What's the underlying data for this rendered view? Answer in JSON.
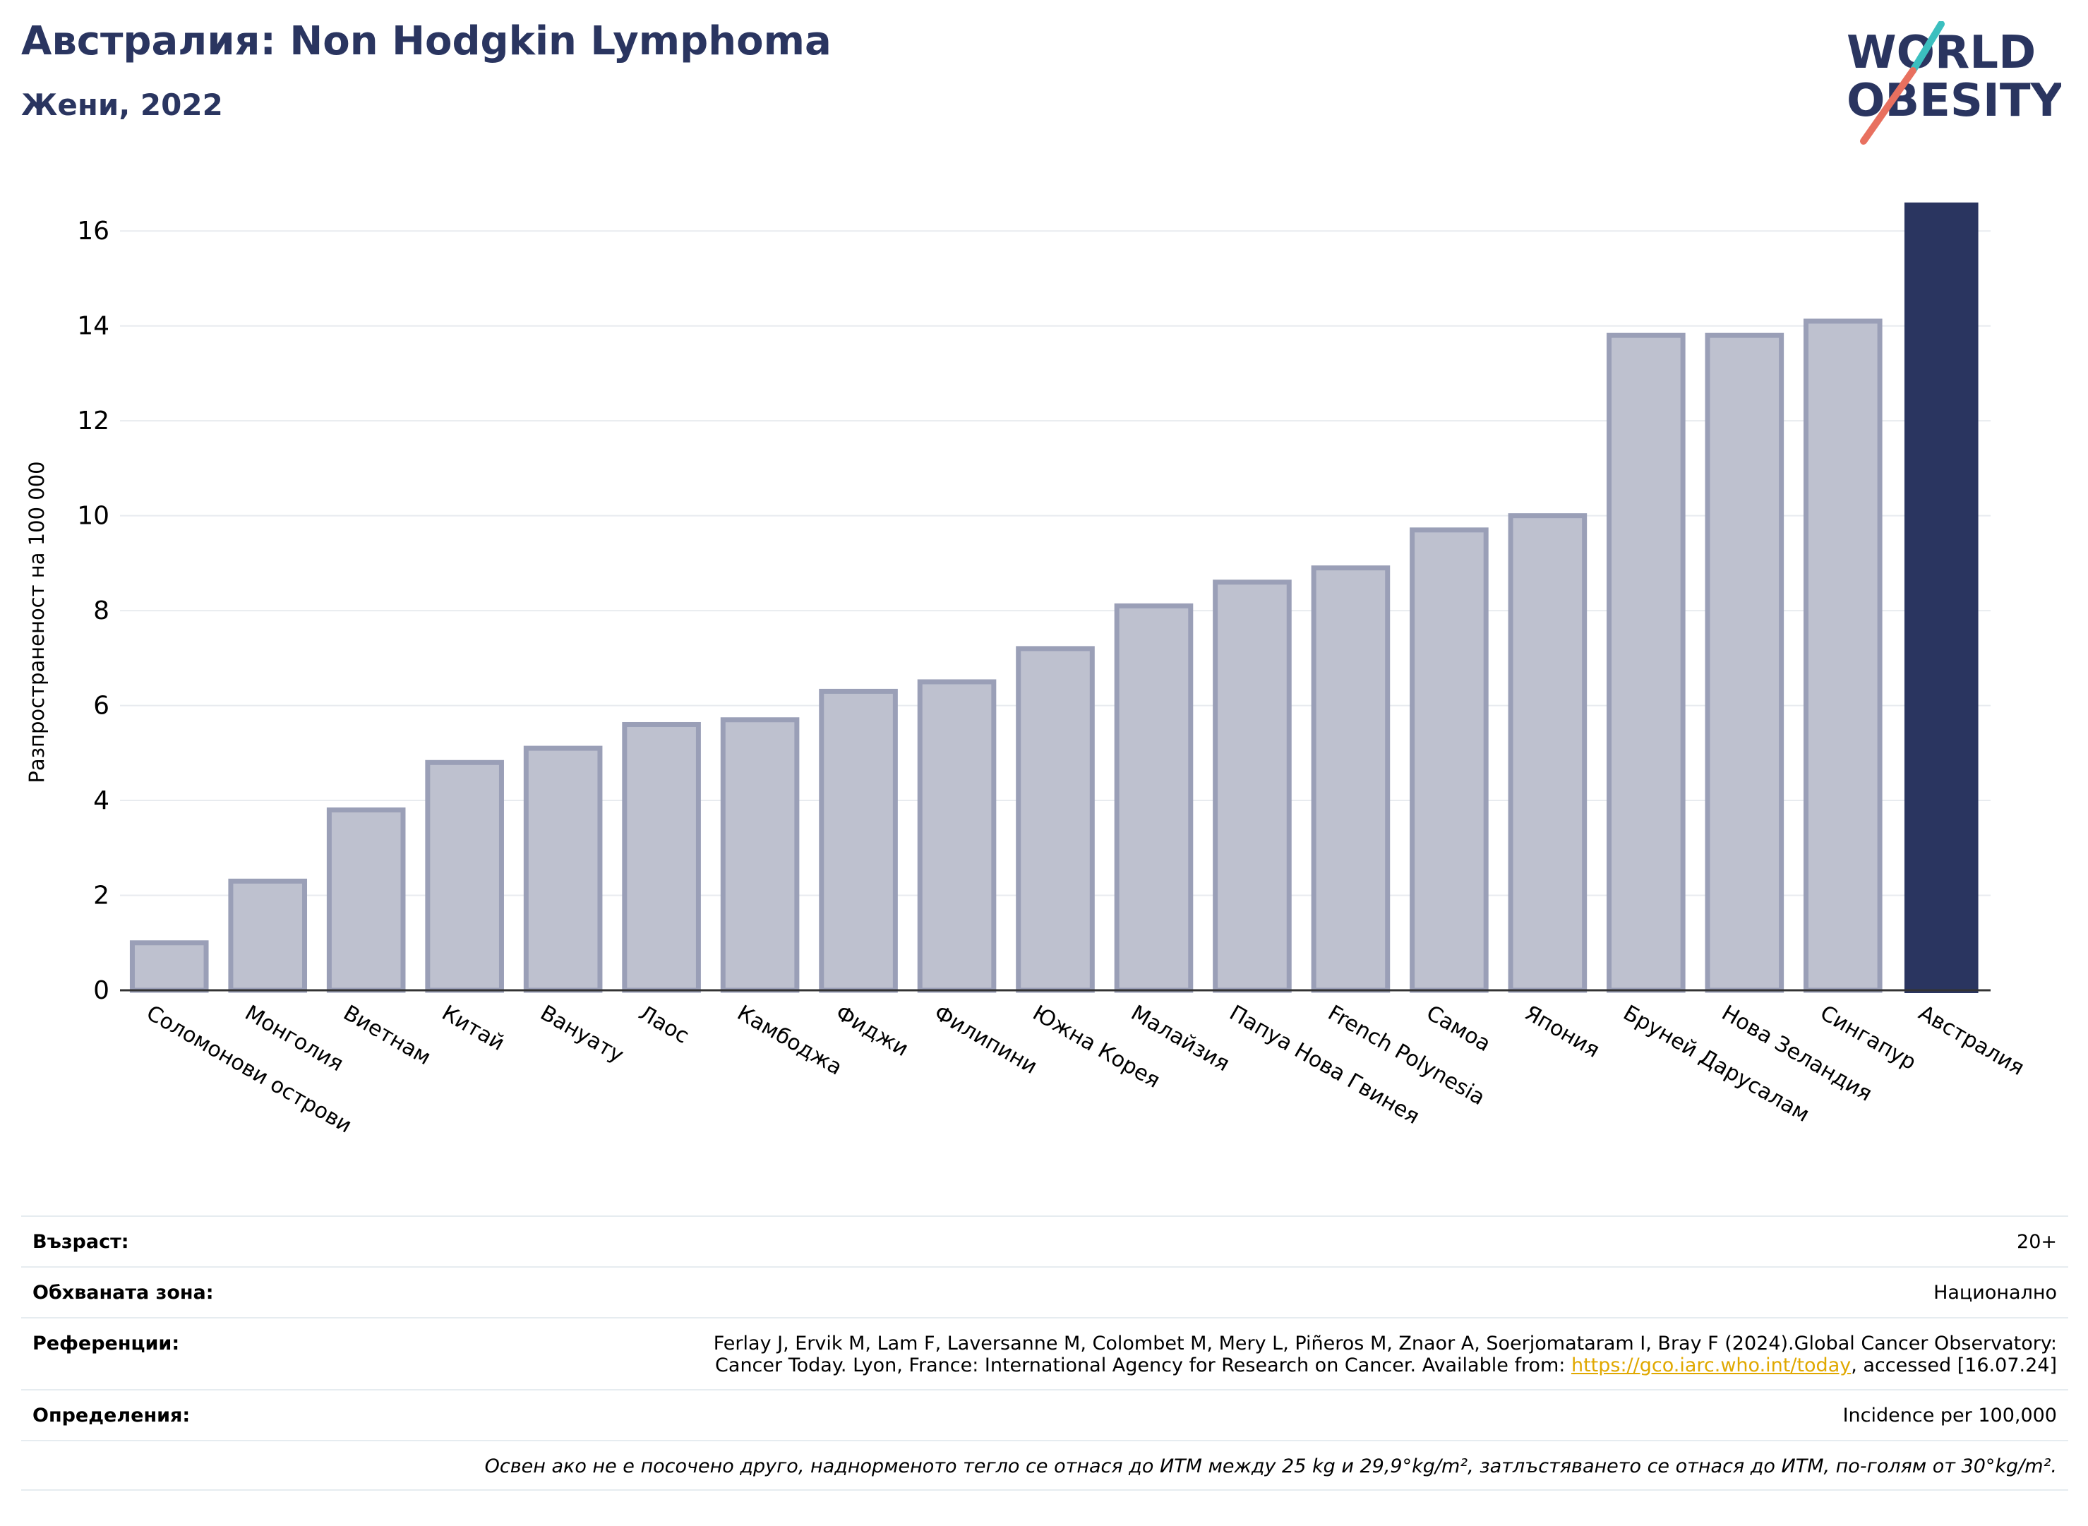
{
  "header": {
    "title": "Австралия: Non Hodgkin Lymphoma",
    "subtitle": "Жени, 2022"
  },
  "logo": {
    "line1": "WORLD",
    "line2": "OBESITY",
    "accent_teal": "#3bbfbf",
    "accent_coral": "#e8705f",
    "brand_color": "#2a3560"
  },
  "colors": {
    "bar_default": "#bec1cf",
    "bar_border": "#9a9fb7",
    "bar_highlight": "#2a3560"
  },
  "chart_data": {
    "type": "bar",
    "title": "Австралия: Non Hodgkin Lymphoma",
    "subtitle": "Жени, 2022",
    "ylabel": "Разпространеност  на 100 000",
    "xlabel": "",
    "ylim": [
      0,
      17
    ],
    "yticks": [
      0,
      2,
      4,
      6,
      8,
      10,
      12,
      14,
      16
    ],
    "grid": true,
    "highlight": "Австралия",
    "categories": [
      "Соломонови острови",
      "Монголия",
      "Виетнам",
      "Китай",
      "Вануату",
      "Лаос",
      "Камбоджа",
      "Фиджи",
      "Филипини",
      "Южна Корея",
      "Малайзия",
      "Папуа Нова Гвинея",
      "French Polynesia",
      "Самоа",
      "Япония",
      "Бруней Даруcалам",
      "Нова Зеландия",
      "Сингапур",
      "Австралия"
    ],
    "values": [
      1.0,
      2.3,
      3.8,
      4.8,
      5.1,
      5.6,
      5.7,
      6.3,
      6.5,
      7.2,
      8.1,
      8.6,
      8.9,
      9.7,
      10.0,
      13.8,
      13.8,
      14.1,
      16.6
    ]
  },
  "info": {
    "age_label": "Възраст:",
    "age_value": "20+",
    "area_label": "Обхваната зона:",
    "area_value": "Национално",
    "refs_label": "Референции:",
    "refs_line1": "Ferlay J, Ervik M, Lam F, Laversanne M, Colombet M, Mery L, Piñeros M, Znaor A, Soerjomataram I, Bray F (2024).Global Cancer Observatory:",
    "refs_line2_pre": "Cancer Today. Lyon, France: International Agency for Research on Cancer. Available from: ",
    "refs_link": "https://gco.iarc.who.int/today",
    "refs_line2_post": ", accessed [16.07.24]",
    "defs_label": "Определения:",
    "defs_value": "Incidence per 100,000",
    "note": "Освен ако не е посочено друго, наднорменото тегло се отнася до ИТМ между 25 kg и 29,9°kg/m², затлъстяването се отнася до ИТМ, по-голям от 30°kg/m²."
  }
}
